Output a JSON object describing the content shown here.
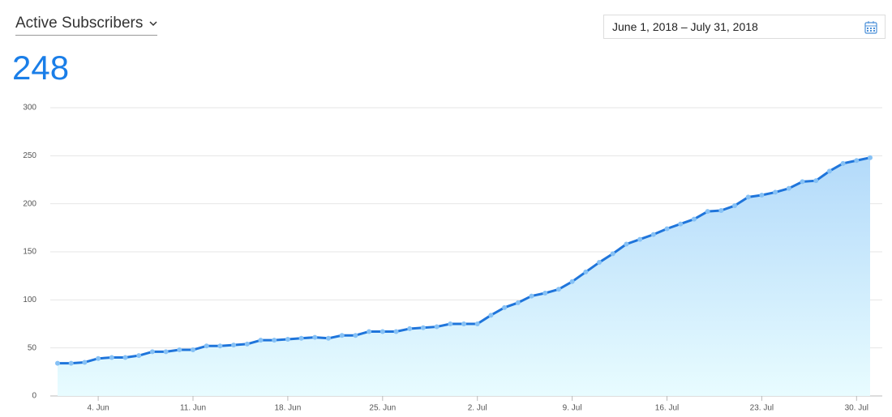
{
  "header": {
    "metric": "Active Subscribers",
    "value": 248,
    "date_range": "June 1, 2018 – July 31, 2018"
  },
  "chart_data": {
    "type": "area",
    "categories": [
      null,
      null,
      null,
      "4. Jun",
      null,
      null,
      null,
      null,
      null,
      null,
      "11. Jun",
      null,
      null,
      null,
      null,
      null,
      null,
      "18. Jun",
      null,
      null,
      null,
      null,
      null,
      null,
      "25. Jun",
      null,
      null,
      null,
      null,
      null,
      null,
      "2. Jul",
      null,
      null,
      null,
      null,
      null,
      null,
      "9. Jul",
      null,
      null,
      null,
      null,
      null,
      null,
      "16. Jul",
      null,
      null,
      null,
      null,
      null,
      null,
      "23. Jul",
      null,
      null,
      null,
      null,
      null,
      null,
      "30. Jul",
      null
    ],
    "values": [
      34,
      34,
      35,
      39,
      40,
      40,
      42,
      46,
      46,
      48,
      48,
      52,
      52,
      53,
      54,
      58,
      58,
      59,
      60,
      61,
      60,
      63,
      63,
      67,
      67,
      67,
      70,
      71,
      72,
      75,
      75,
      75,
      84,
      92,
      97,
      104,
      107,
      111,
      119,
      129,
      139,
      148,
      158,
      163,
      168,
      174,
      179,
      184,
      192,
      193,
      198,
      207,
      209,
      212,
      216,
      223,
      224,
      234,
      242,
      245,
      248
    ],
    "color": "#1f75db",
    "marker_color": "#86c1f5",
    "fill_colors": [
      "#b3dafa",
      "#e8fcff"
    ],
    "ylim": [
      0,
      300
    ],
    "yticks": [
      0,
      50,
      100,
      150,
      200,
      250,
      300
    ],
    "grid": true
  }
}
